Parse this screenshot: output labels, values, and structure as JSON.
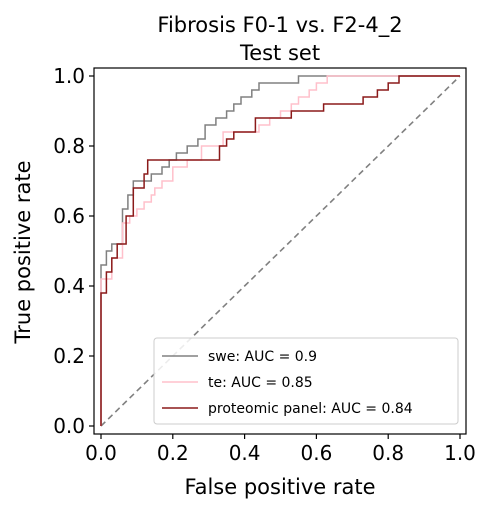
{
  "chart_data": {
    "type": "line",
    "title": "Fibrosis F0-1 vs. F2-4_2",
    "subtitle": "Test set",
    "xlabel": "False positive rate",
    "ylabel": "True positive rate",
    "xlim": [
      0.0,
      1.0
    ],
    "ylim": [
      0.0,
      1.0
    ],
    "xticks": [
      "0.0",
      "0.2",
      "0.4",
      "0.6",
      "0.8",
      "1.0"
    ],
    "yticks": [
      "0.0",
      "0.2",
      "0.4",
      "0.6",
      "0.8",
      "1.0"
    ],
    "grid": false,
    "legend_position": "lower-right",
    "series": [
      {
        "name": "swe: AUC = 0.9",
        "color": "#808080",
        "x": [
          0,
          0,
          0.015,
          0.015,
          0.03,
          0.03,
          0.06,
          0.06,
          0.075,
          0.075,
          0.09,
          0.09,
          0.14,
          0.14,
          0.17,
          0.17,
          0.19,
          0.19,
          0.21,
          0.21,
          0.24,
          0.24,
          0.27,
          0.27,
          0.29,
          0.29,
          0.32,
          0.32,
          0.35,
          0.35,
          0.37,
          0.37,
          0.39,
          0.39,
          0.42,
          0.42,
          0.44,
          0.44,
          0.47,
          0.47,
          0.55,
          0.55,
          0.59,
          0.59,
          0.64,
          0.64,
          1.0
        ],
        "y": [
          0,
          0.46,
          0.46,
          0.5,
          0.5,
          0.52,
          0.52,
          0.62,
          0.62,
          0.66,
          0.66,
          0.7,
          0.7,
          0.72,
          0.72,
          0.74,
          0.74,
          0.76,
          0.76,
          0.78,
          0.78,
          0.8,
          0.8,
          0.82,
          0.82,
          0.86,
          0.86,
          0.88,
          0.88,
          0.9,
          0.9,
          0.92,
          0.92,
          0.94,
          0.94,
          0.96,
          0.96,
          0.98,
          0.98,
          0.98,
          0.98,
          1.0,
          1.0,
          1.0,
          1.0,
          1.0,
          1.0
        ]
      },
      {
        "name": "te: AUC = 0.85",
        "color": "#ffc0cb",
        "x": [
          0,
          0,
          0.03,
          0.03,
          0.06,
          0.06,
          0.08,
          0.08,
          0.1,
          0.1,
          0.12,
          0.12,
          0.14,
          0.14,
          0.15,
          0.15,
          0.17,
          0.17,
          0.2,
          0.2,
          0.24,
          0.24,
          0.28,
          0.28,
          0.34,
          0.34,
          0.44,
          0.44,
          0.47,
          0.47,
          0.5,
          0.5,
          0.53,
          0.53,
          0.55,
          0.55,
          0.58,
          0.58,
          0.6,
          0.6,
          0.63,
          0.63,
          1.0
        ],
        "y": [
          0,
          0.42,
          0.42,
          0.48,
          0.48,
          0.58,
          0.58,
          0.6,
          0.6,
          0.62,
          0.62,
          0.64,
          0.64,
          0.66,
          0.66,
          0.68,
          0.68,
          0.7,
          0.7,
          0.74,
          0.74,
          0.76,
          0.76,
          0.8,
          0.8,
          0.84,
          0.84,
          0.86,
          0.86,
          0.88,
          0.88,
          0.9,
          0.9,
          0.92,
          0.92,
          0.94,
          0.94,
          0.96,
          0.96,
          0.98,
          0.98,
          1.0,
          1.0
        ]
      },
      {
        "name": "proteomic panel: AUC = 0.84",
        "color": "#8b1a1a",
        "x": [
          0,
          0,
          0.015,
          0.015,
          0.03,
          0.03,
          0.045,
          0.045,
          0.07,
          0.07,
          0.09,
          0.09,
          0.12,
          0.12,
          0.13,
          0.13,
          0.18,
          0.18,
          0.33,
          0.33,
          0.35,
          0.35,
          0.37,
          0.37,
          0.39,
          0.39,
          0.43,
          0.43,
          0.53,
          0.53,
          0.62,
          0.62,
          0.73,
          0.73,
          0.77,
          0.77,
          0.8,
          0.8,
          0.83,
          0.83,
          0.86,
          0.86,
          1.0
        ],
        "y": [
          0,
          0.38,
          0.38,
          0.44,
          0.44,
          0.48,
          0.48,
          0.52,
          0.52,
          0.6,
          0.6,
          0.68,
          0.68,
          0.72,
          0.72,
          0.76,
          0.76,
          0.76,
          0.76,
          0.8,
          0.8,
          0.82,
          0.82,
          0.84,
          0.84,
          0.84,
          0.84,
          0.88,
          0.88,
          0.9,
          0.9,
          0.92,
          0.92,
          0.94,
          0.94,
          0.96,
          0.96,
          0.98,
          0.98,
          1.0,
          1.0,
          1.0,
          1.0
        ]
      }
    ],
    "reference_line": {
      "x": [
        0,
        1
      ],
      "y": [
        0,
        1
      ],
      "color": "#808080",
      "style": "dashed"
    }
  }
}
